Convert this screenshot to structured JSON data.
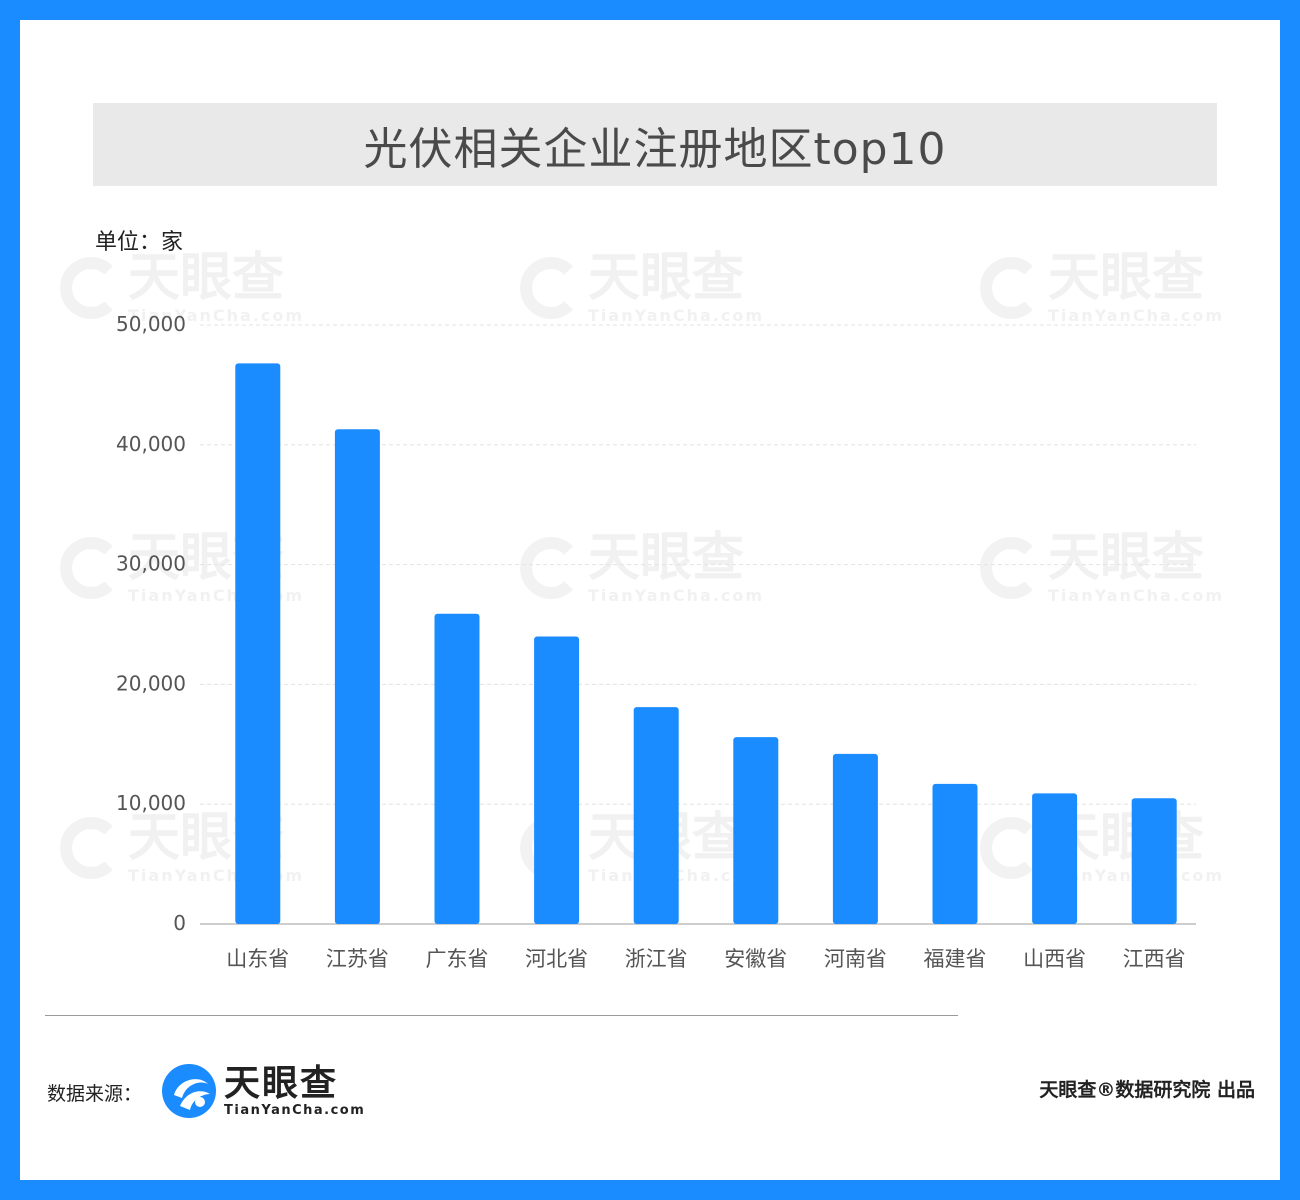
{
  "header": {
    "title": "光伏相关企业注册地区top10"
  },
  "unit_label": "单位：家",
  "watermark": {
    "cn": "天眼查",
    "en": "TianYanCha.com"
  },
  "footer": {
    "source_label": "数据来源：",
    "logo_cn": "天眼查",
    "logo_en": "TianYanCha.com",
    "credit": "天眼查®数据研究院 出品"
  },
  "colors": {
    "bar": "#1a8cff",
    "frame": "#1a8cff",
    "title_bg": "#e9e9e9"
  },
  "chart_data": {
    "type": "bar",
    "title": "光伏相关企业注册地区top10",
    "ylabel": "单位：家",
    "categories": [
      "山东省",
      "江苏省",
      "广东省",
      "河北省",
      "浙江省",
      "安徽省",
      "河南省",
      "福建省",
      "山西省",
      "江西省"
    ],
    "values": [
      46800,
      41300,
      25900,
      24000,
      18100,
      15600,
      14200,
      11700,
      10900,
      10500
    ],
    "ylim": [
      0,
      50000
    ],
    "yticks": [
      0,
      10000,
      20000,
      30000,
      40000,
      50000
    ],
    "ytick_labels": [
      "0",
      "10,000",
      "20,000",
      "30,000",
      "40,000",
      "50,000"
    ],
    "grid": true,
    "legend": "none"
  }
}
